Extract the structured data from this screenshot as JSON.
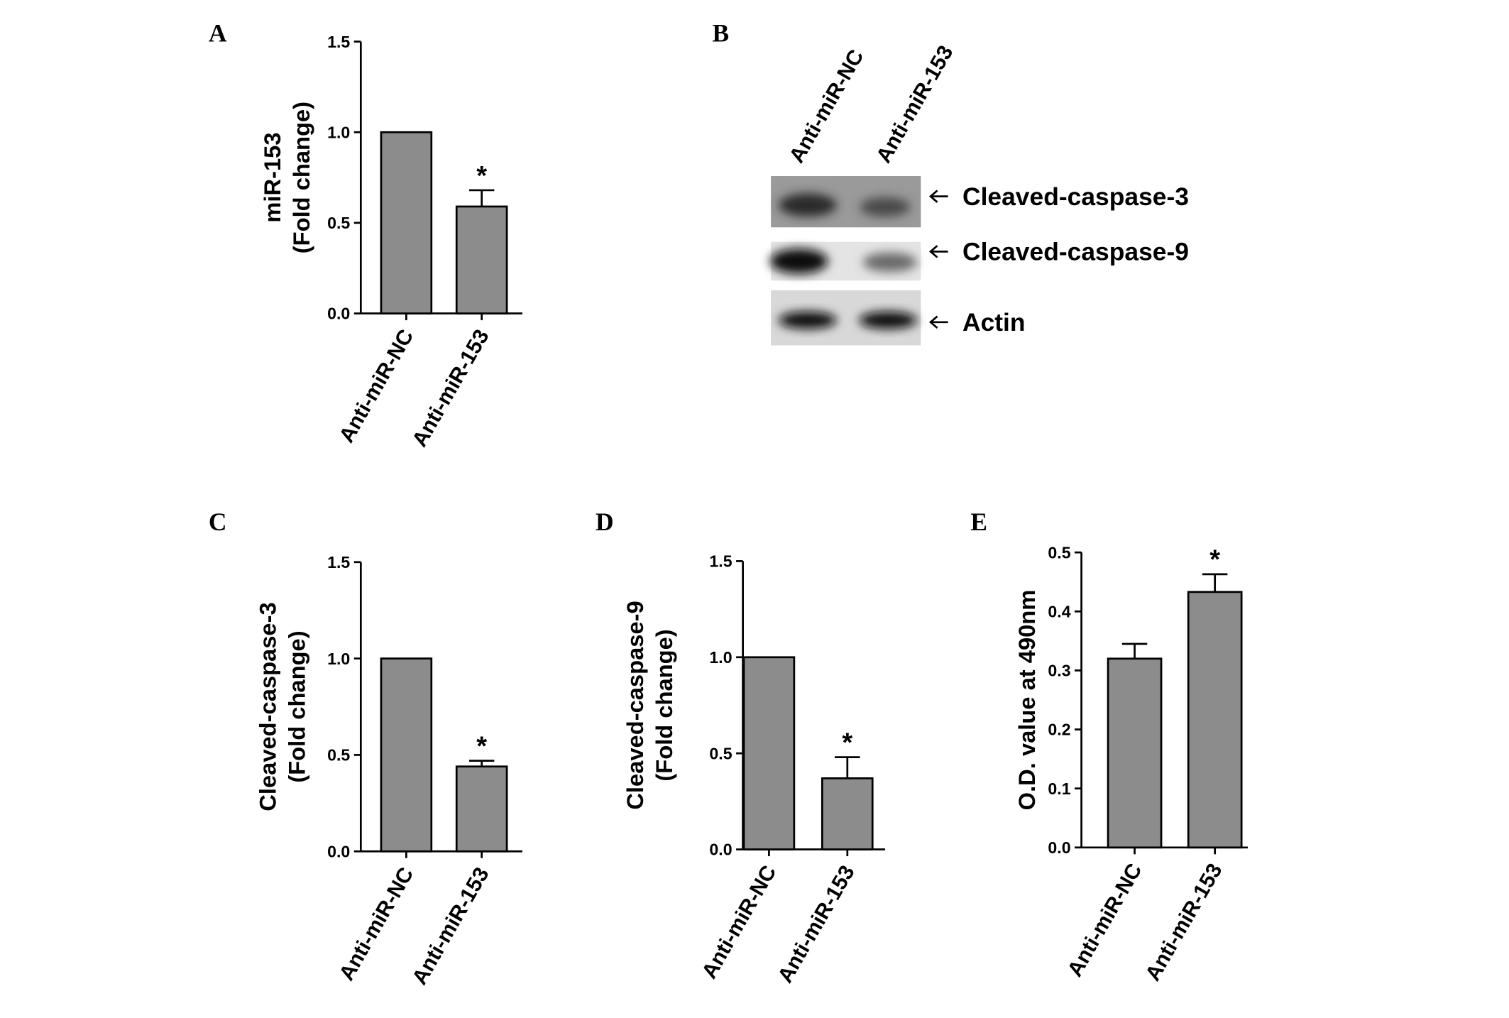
{
  "chart_data": [
    {
      "type": "bar",
      "panel": "A",
      "ylabel": [
        "miR-153",
        "(Fold change)"
      ],
      "categories": [
        "Anti-miR-NC",
        "Anti-miR-153"
      ],
      "values": [
        1.0,
        0.59
      ],
      "errors": [
        0,
        0.09
      ],
      "significance": [
        null,
        "*"
      ],
      "color": "#8c8c8c",
      "ylim": [
        0,
        1.5
      ],
      "yticks": [
        {
          "value": 0,
          "label": "0.0"
        },
        0.5,
        {
          "value": 1,
          "label": "1.0"
        },
        1.5
      ]
    },
    {
      "type": "blot",
      "panel": "B",
      "lanes": [
        "Anti-miR-NC",
        "Anti-miR-153"
      ],
      "bands": [
        "Cleaved-caspase-3",
        "Cleaved-caspase-9",
        "Actin"
      ]
    },
    {
      "type": "bar",
      "panel": "C",
      "ylabel": [
        "Cleaved-caspase-3",
        "(Fold change)"
      ],
      "categories": [
        "Anti-miR-NC",
        "Anti-miR-153"
      ],
      "values": [
        1.0,
        0.44
      ],
      "errors": [
        0,
        0.03
      ],
      "significance": [
        null,
        "*"
      ],
      "color": "#8c8c8c",
      "ylim": [
        0,
        1.5
      ],
      "yticks": [
        {
          "value": 0,
          "label": "0.0"
        },
        0.5,
        {
          "value": 1,
          "label": "1.0"
        },
        1.5
      ]
    },
    {
      "type": "bar",
      "panel": "D",
      "ylabel": [
        "Cleaved-caspase-9",
        "(Fold change)"
      ],
      "categories": [
        "Anti-miR-NC",
        "Anti-miR-153"
      ],
      "values": [
        1.0,
        0.37
      ],
      "errors": [
        0,
        0.11
      ],
      "significance": [
        null,
        "*"
      ],
      "color": "#8c8c8c",
      "ylim": [
        0,
        1.5
      ],
      "yticks": [
        {
          "value": 0,
          "label": "0.0"
        },
        0.5,
        {
          "value": 1,
          "label": "1.0"
        },
        1.5
      ]
    },
    {
      "type": "bar",
      "panel": "E",
      "ylabel": [
        "O.D. value at 490nm"
      ],
      "categories": [
        "Anti-miR-NC",
        "Anti-miR-153"
      ],
      "values": [
        0.32,
        0.433
      ],
      "errors": [
        0.025,
        0.03
      ],
      "significance": [
        null,
        "*"
      ],
      "color": "#8c8c8c",
      "ylim": [
        0,
        0.5
      ],
      "yticks": [
        {
          "value": 0,
          "label": "0.0"
        },
        0.1,
        0.2,
        0.3,
        0.4,
        0.5
      ]
    }
  ]
}
